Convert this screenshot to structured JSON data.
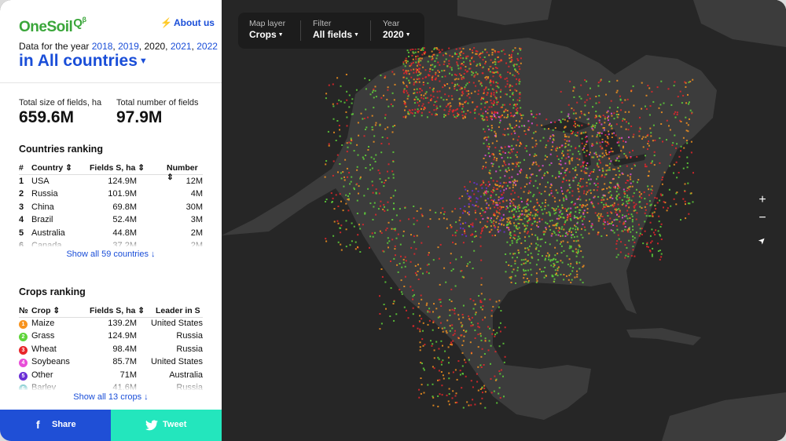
{
  "logo": {
    "text": "OneSoil",
    "q": "Q",
    "beta": "β"
  },
  "about_label": "About us",
  "years": {
    "prefix": "Data for the year ",
    "list": [
      "2018",
      "2019",
      "2020",
      "2021",
      "2022"
    ],
    "selected": "2020"
  },
  "country_select": "in All countries",
  "stats": {
    "size_label": "Total size of fields, ha",
    "size_value": "659.6M",
    "count_label": "Total number of fields",
    "count_value": "97.9M"
  },
  "countries": {
    "title": "Countries ranking",
    "headers": {
      "rank": "#",
      "country": "Country",
      "size": "Fields S, ha",
      "number": "Number"
    },
    "rows": [
      {
        "rank": "1",
        "name": "USA",
        "size": "124.9M",
        "number": "12M"
      },
      {
        "rank": "2",
        "name": "Russia",
        "size": "101.9M",
        "number": "4M"
      },
      {
        "rank": "3",
        "name": "China",
        "size": "69.8M",
        "number": "30M"
      },
      {
        "rank": "4",
        "name": "Brazil",
        "size": "52.4M",
        "number": "3M"
      },
      {
        "rank": "5",
        "name": "Australia",
        "size": "44.8M",
        "number": "2M"
      },
      {
        "rank": "6",
        "name": "Canada",
        "size": "37.2M",
        "number": "2M"
      }
    ],
    "show_all": "Show all 59 countries ↓"
  },
  "crops": {
    "title": "Crops ranking",
    "headers": {
      "rank": "№",
      "crop": "Crop",
      "size": "Fields S, ha",
      "leader": "Leader in S"
    },
    "rows": [
      {
        "rank": "1",
        "name": "Maize",
        "size": "139.2M",
        "leader": "United States",
        "color": "#f7931e"
      },
      {
        "rank": "2",
        "name": "Grass",
        "size": "124.9M",
        "leader": "Russia",
        "color": "#5fd43a"
      },
      {
        "rank": "3",
        "name": "Wheat",
        "size": "98.4M",
        "leader": "Russia",
        "color": "#e8262a"
      },
      {
        "rank": "4",
        "name": "Soybeans",
        "size": "85.7M",
        "leader": "United States",
        "color": "#e84fd8"
      },
      {
        "rank": "5",
        "name": "Other",
        "size": "71M",
        "leader": "Australia",
        "color": "#6a2fd6"
      },
      {
        "rank": "6",
        "name": "Barley",
        "size": "41.6M",
        "leader": "Russia",
        "color": "#18a0a8"
      }
    ],
    "show_all": "Show all 13 crops ↓"
  },
  "share_label": "Share",
  "tweet_label": "Tweet",
  "map_controls": {
    "layer_label": "Map layer",
    "layer_value": "Crops",
    "filter_label": "Filter",
    "filter_value": "All fields",
    "year_label": "Year",
    "year_value": "2020",
    "zoom_in": "+",
    "zoom_out": "−",
    "locate": "➤"
  },
  "colors": {
    "accent": "#1a4ed8",
    "brand_green": "#3aa63a",
    "share_bg": "#1f4fd6",
    "tweet_bg": "#23e6bd",
    "map_bg": "#262626",
    "land": "#3c3c3c"
  }
}
